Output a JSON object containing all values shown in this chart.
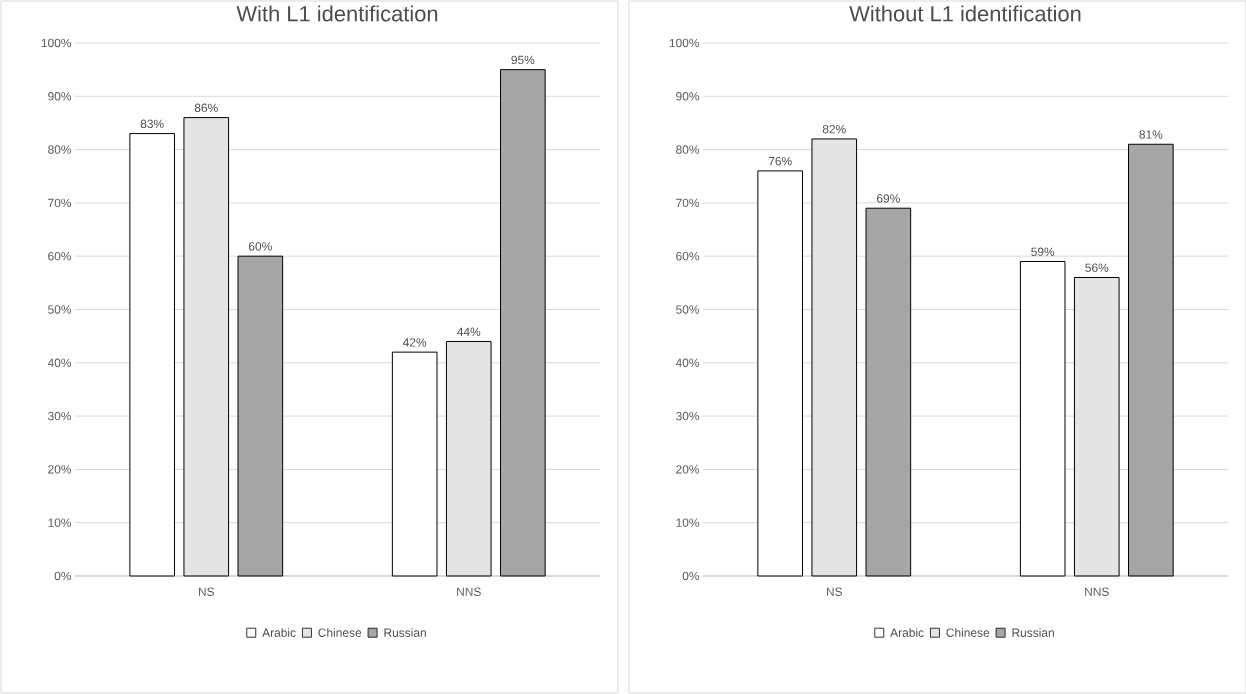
{
  "chart_data": [
    {
      "type": "bar",
      "title": "With L1 identification",
      "categories": [
        "NS",
        "NNS"
      ],
      "series": [
        {
          "name": "Arabic",
          "color": "#ffffff",
          "values": [
            83,
            42
          ],
          "value_labels": [
            "83%",
            "42%"
          ]
        },
        {
          "name": "Chinese",
          "color": "#e4e4e4",
          "values": [
            86,
            44
          ],
          "value_labels": [
            "86%",
            "44%"
          ]
        },
        {
          "name": "Russian",
          "color": "#a6a6a6",
          "values": [
            60,
            95
          ],
          "value_labels": [
            "60%",
            "95%"
          ]
        }
      ],
      "ylim": [
        0,
        100
      ],
      "yticks": [
        {
          "value": 0,
          "label": "0%"
        },
        {
          "value": 10,
          "label": "10%"
        },
        {
          "value": 20,
          "label": "20%"
        },
        {
          "value": 30,
          "label": "30%"
        },
        {
          "value": 40,
          "label": "40%"
        },
        {
          "value": 50,
          "label": "50%"
        },
        {
          "value": 60,
          "label": "60%"
        },
        {
          "value": 70,
          "label": "70%"
        },
        {
          "value": 80,
          "label": "80%"
        },
        {
          "value": 90,
          "label": "90%"
        },
        {
          "value": 100,
          "label": "100%"
        }
      ],
      "grid": "y",
      "legend": "bottom"
    },
    {
      "type": "bar",
      "title": "Without L1 identification",
      "categories": [
        "NS",
        "NNS"
      ],
      "series": [
        {
          "name": "Arabic",
          "color": "#ffffff",
          "values": [
            76,
            59
          ],
          "value_labels": [
            "76%",
            "59%"
          ]
        },
        {
          "name": "Chinese",
          "color": "#e4e4e4",
          "values": [
            82,
            56
          ],
          "value_labels": [
            "82%",
            "56%"
          ]
        },
        {
          "name": "Russian",
          "color": "#a6a6a6",
          "values": [
            69,
            81
          ],
          "value_labels": [
            "69%",
            "81%"
          ]
        }
      ],
      "ylim": [
        0,
        100
      ],
      "yticks": [
        {
          "value": 0,
          "label": "0%"
        },
        {
          "value": 10,
          "label": "10%"
        },
        {
          "value": 20,
          "label": "20%"
        },
        {
          "value": 30,
          "label": "30%"
        },
        {
          "value": 40,
          "label": "40%"
        },
        {
          "value": 50,
          "label": "50%"
        },
        {
          "value": 60,
          "label": "60%"
        },
        {
          "value": 70,
          "label": "70%"
        },
        {
          "value": 80,
          "label": "80%"
        },
        {
          "value": 90,
          "label": "90%"
        },
        {
          "value": 100,
          "label": "100%"
        }
      ],
      "grid": "y",
      "legend": "bottom"
    }
  ]
}
